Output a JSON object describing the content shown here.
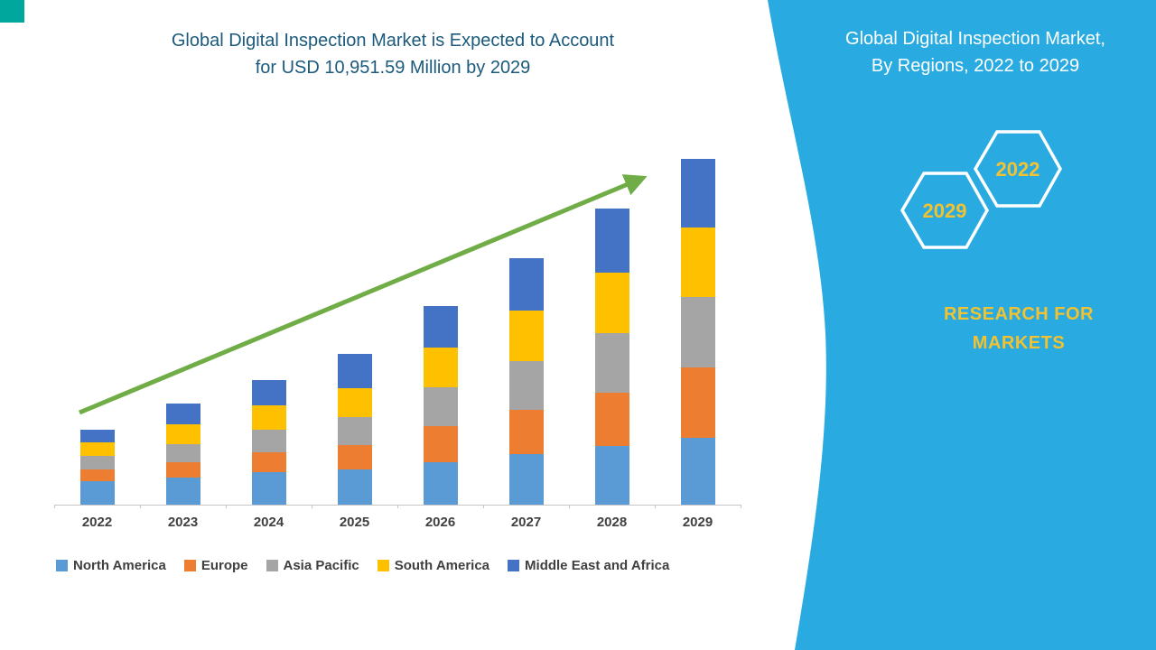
{
  "page": {
    "corner_accent_color": "#00A79D",
    "background": "#FFFFFF"
  },
  "header": {
    "line1": "Global Digital Inspection Market is Expected to Account",
    "line2": "for USD 10,951.59 Million by 2029",
    "color": "#1B5A7D"
  },
  "side_panel": {
    "color": "#29ABE2",
    "title_line1": "Global Digital Inspection Market,",
    "title_line2": "By Regions, 2022 to 2029",
    "hexagon_back_label": "2022",
    "hexagon_front_label": "2029",
    "brand_line1": "RESEARCH FOR",
    "brand_line2": "MARKETS",
    "text_color": "#FFFFFF",
    "accent_text_color": "#F2C230"
  },
  "chart_data": {
    "type": "bar",
    "stacked": true,
    "title": "Global Digital Inspection Market is Expected to Account for USD 10,951.59 Million by 2029",
    "unit": "USD Million",
    "categories": [
      "2022",
      "2023",
      "2024",
      "2025",
      "2026",
      "2027",
      "2028",
      "2029"
    ],
    "series": [
      {
        "name": "North America",
        "color": "#5B9BD5",
        "values": [
          730,
          870,
          1020,
          1105,
          1335,
          1600,
          1860,
          2120
        ]
      },
      {
        "name": "Europe",
        "color": "#ED7D31",
        "values": [
          380,
          465,
          640,
          785,
          1160,
          1395,
          1685,
          2235
        ]
      },
      {
        "name": "Asia Pacific",
        "color": "#A5A5A5",
        "values": [
          435,
          580,
          725,
          870,
          1220,
          1540,
          1890,
          2210
        ]
      },
      {
        "name": "South America",
        "color": "#FFC000",
        "values": [
          435,
          640,
          755,
          930,
          1250,
          1600,
          1915,
          2210
        ]
      },
      {
        "name": "Middle East and Africa",
        "color": "#4472C4",
        "values": [
          400,
          640,
          810,
          1075,
          1310,
          1680,
          2035,
          2176.59
        ]
      }
    ],
    "totals": [
      2380,
      3195,
      3950,
      4765,
      6275,
      7815,
      9385,
      10951.59
    ],
    "ylim": [
      0,
      11000
    ],
    "grid": false,
    "legend_position": "bottom",
    "annotations": [
      "upward green trend arrow from 2022 to 2029"
    ],
    "trend_arrow_color": "#70AD47"
  }
}
